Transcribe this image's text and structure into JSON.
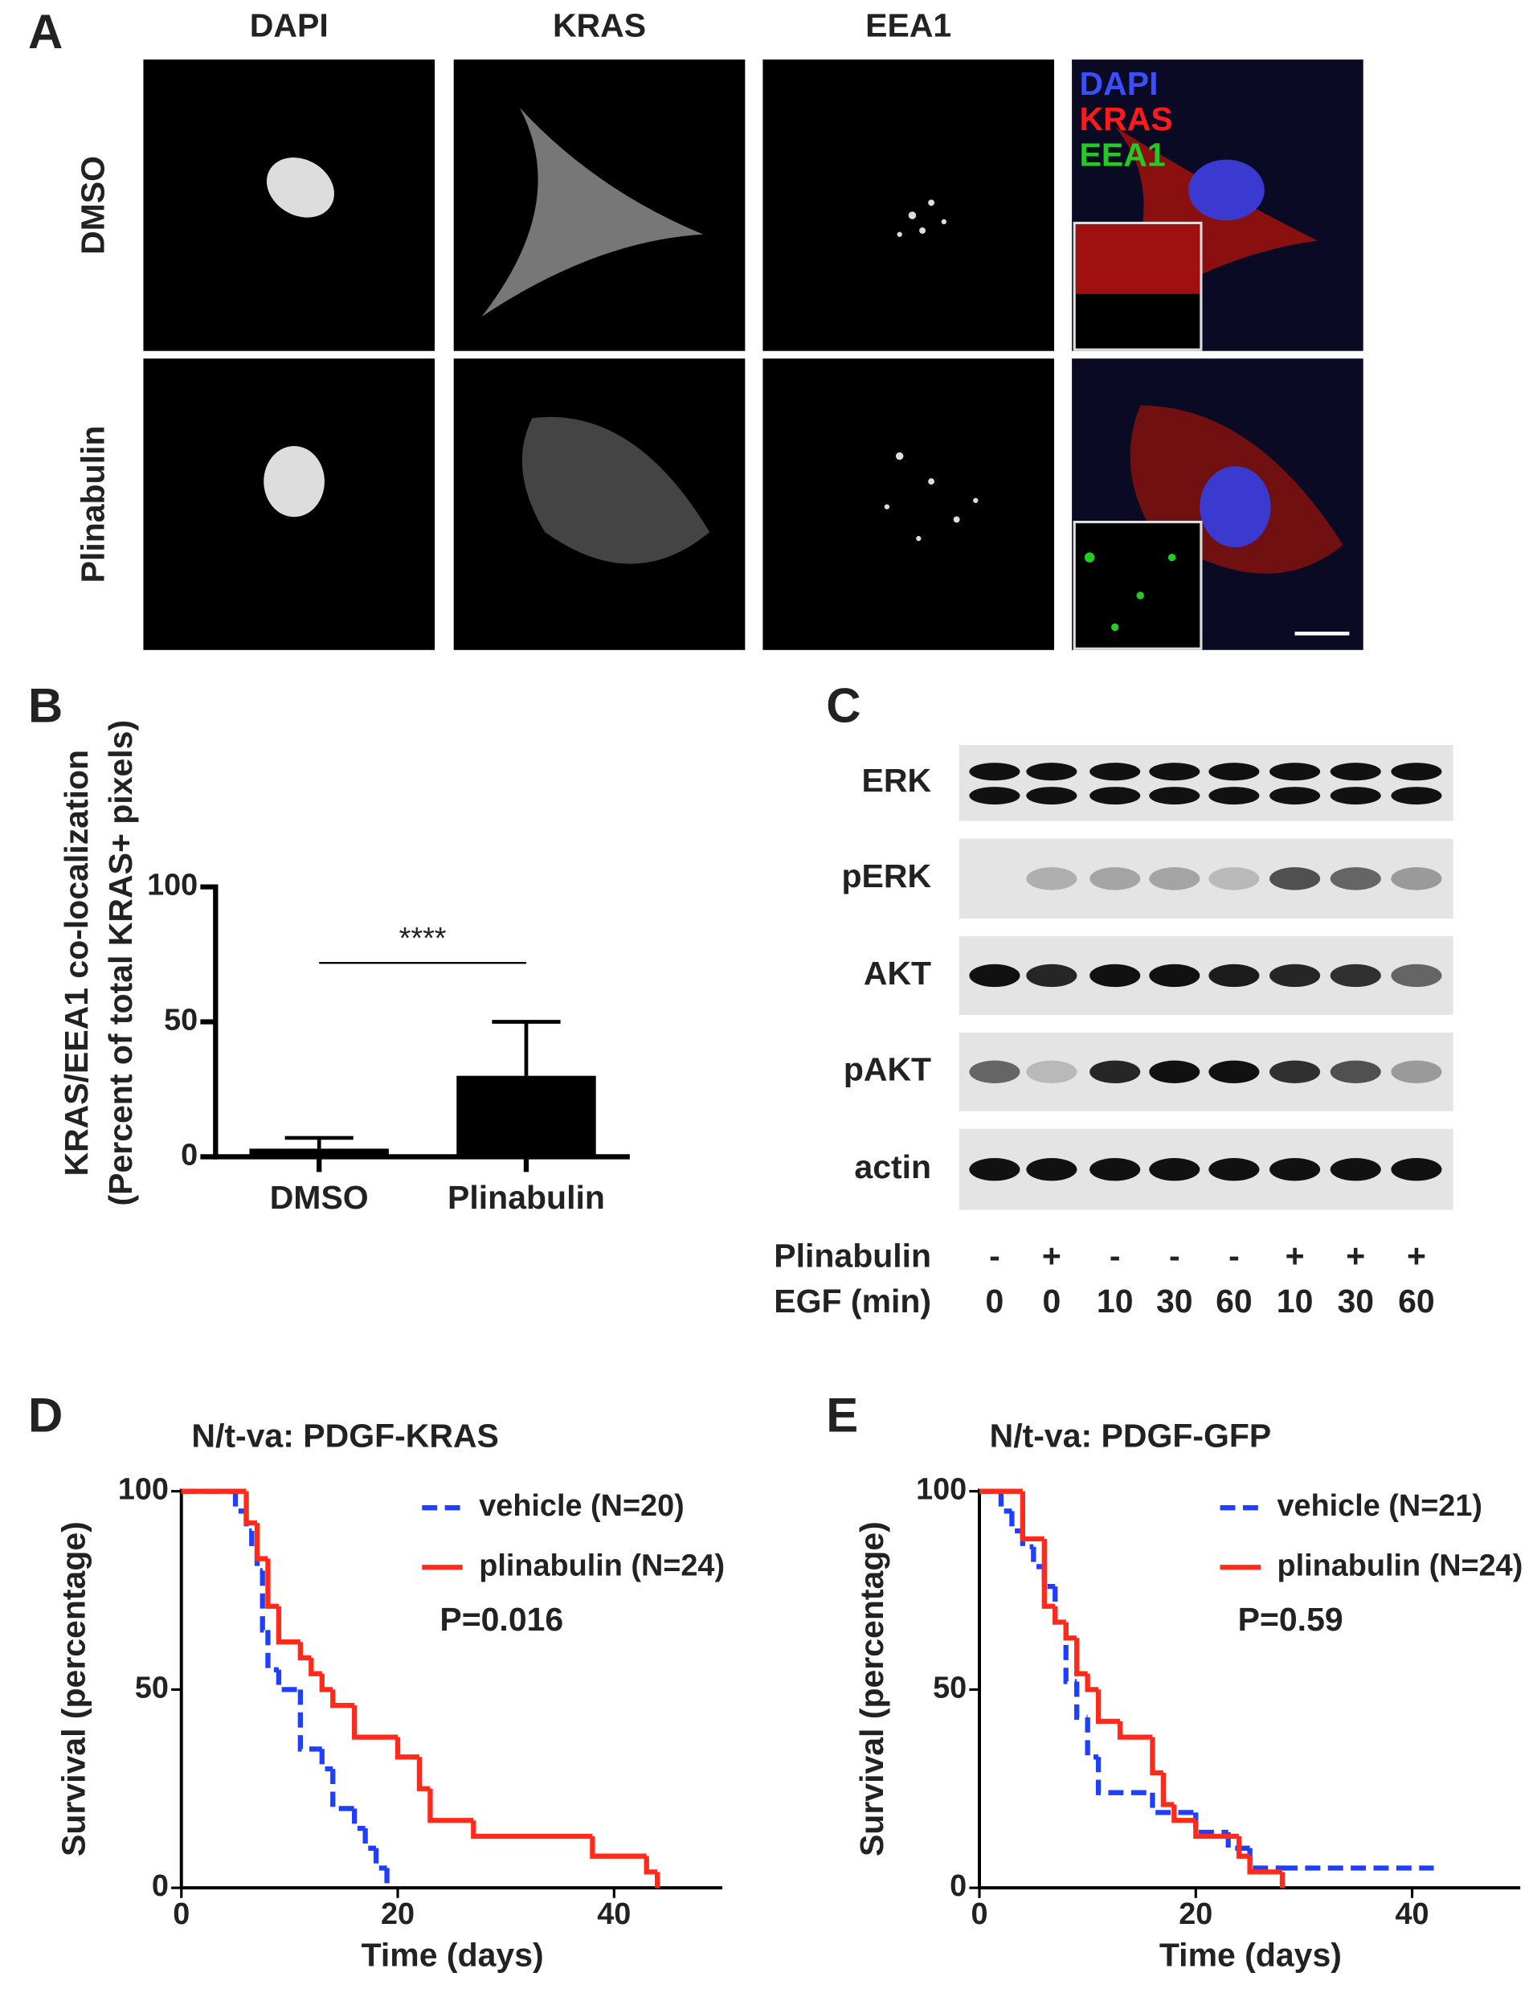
{
  "panel_labels": [
    "A",
    "B",
    "C",
    "D",
    "E"
  ],
  "microscopy": {
    "columns": [
      "DAPI",
      "KRAS",
      "EEA1"
    ],
    "rows": [
      "DMSO",
      "Plinabulin"
    ],
    "merge_legend": [
      {
        "text": "DAPI",
        "color": "#3a4dff"
      },
      {
        "text": "KRAS",
        "color": "#ff1a1a"
      },
      {
        "text": "EEA1",
        "color": "#22cc22"
      }
    ]
  },
  "western_blot": {
    "rows": [
      "ERK",
      "pERK",
      "AKT",
      "pAKT",
      "actin"
    ],
    "conditions": [
      {
        "label": "Plinabulin",
        "values": [
          "-",
          "+",
          "-",
          "-",
          "-",
          "+",
          "+",
          "+"
        ]
      },
      {
        "label": "EGF (min)",
        "values": [
          0,
          0,
          10,
          30,
          60,
          10,
          30,
          60
        ]
      }
    ]
  },
  "chart_data": [
    {
      "type": "bar",
      "y_label": "KRAS/EEA1 co-localization",
      "y_label_sub": "(Percent of total KRAS+ pixels)",
      "categories": [
        "DMSO",
        "Plinabulin"
      ],
      "values": [
        3,
        30
      ],
      "errors": [
        4,
        20
      ],
      "color": "#000000",
      "ylim": [
        0,
        100
      ],
      "yticks": [
        0,
        50,
        100
      ],
      "annotation": "****"
    },
    {
      "type": "step",
      "title": "N/t-va: PDGF-KRAS",
      "x_label": "Time (days)",
      "y_label": "Survival (percentage)",
      "xlim": [
        0,
        50
      ],
      "ylim": [
        0,
        100
      ],
      "xticks": [
        0,
        20,
        40
      ],
      "yticks": [
        0,
        50,
        100
      ],
      "legend": "upper right",
      "annotation": "P=0.016",
      "series": [
        {
          "name": "vehicle (N=20)",
          "color": "#1f3fff",
          "dashed": true,
          "x": [
            0,
            5,
            6,
            6.5,
            7,
            7.5,
            8,
            9,
            11,
            13,
            14,
            16,
            17,
            18,
            19
          ],
          "values": [
            100,
            95,
            90,
            85,
            80,
            65,
            55,
            50,
            35,
            30,
            20,
            15,
            10,
            5,
            0
          ]
        },
        {
          "name": "plinabulin (N=24)",
          "color": "#ff2a1a",
          "dashed": false,
          "x": [
            0,
            6,
            7,
            8,
            9,
            11,
            12,
            13,
            14,
            16,
            20,
            22,
            23,
            27,
            38,
            43,
            44
          ],
          "values": [
            100,
            92,
            83,
            71,
            62,
            58,
            54,
            50,
            46,
            38,
            33,
            25,
            17,
            13,
            8,
            4,
            0
          ]
        }
      ]
    },
    {
      "type": "step",
      "title": "N/t-va: PDGF-GFP",
      "x_label": "Time (days)",
      "y_label": "Survival (percentage)",
      "xlim": [
        0,
        50
      ],
      "ylim": [
        0,
        100
      ],
      "xticks": [
        0,
        20,
        40
      ],
      "yticks": [
        0,
        50,
        100
      ],
      "legend": "upper right",
      "annotation": "P=0.59",
      "series": [
        {
          "name": "vehicle (N=21)",
          "color": "#1f3fff",
          "dashed": true,
          "x": [
            0,
            2,
            3,
            4,
            5,
            6,
            7,
            8,
            9,
            10,
            11,
            16,
            20,
            23,
            25,
            28,
            42
          ],
          "values": [
            100,
            95,
            90,
            86,
            81,
            76,
            67,
            52,
            43,
            33,
            24,
            19,
            14,
            10,
            5,
            5,
            5
          ]
        },
        {
          "name": "plinabulin (N=24)",
          "color": "#ff2a1a",
          "dashed": false,
          "x": [
            0,
            4,
            6,
            7,
            8,
            9,
            10,
            11,
            13,
            16,
            17,
            18,
            20,
            24,
            25,
            28
          ],
          "values": [
            100,
            88,
            71,
            67,
            63,
            54,
            50,
            42,
            38,
            29,
            21,
            17,
            13,
            8,
            4,
            0
          ]
        }
      ]
    }
  ]
}
